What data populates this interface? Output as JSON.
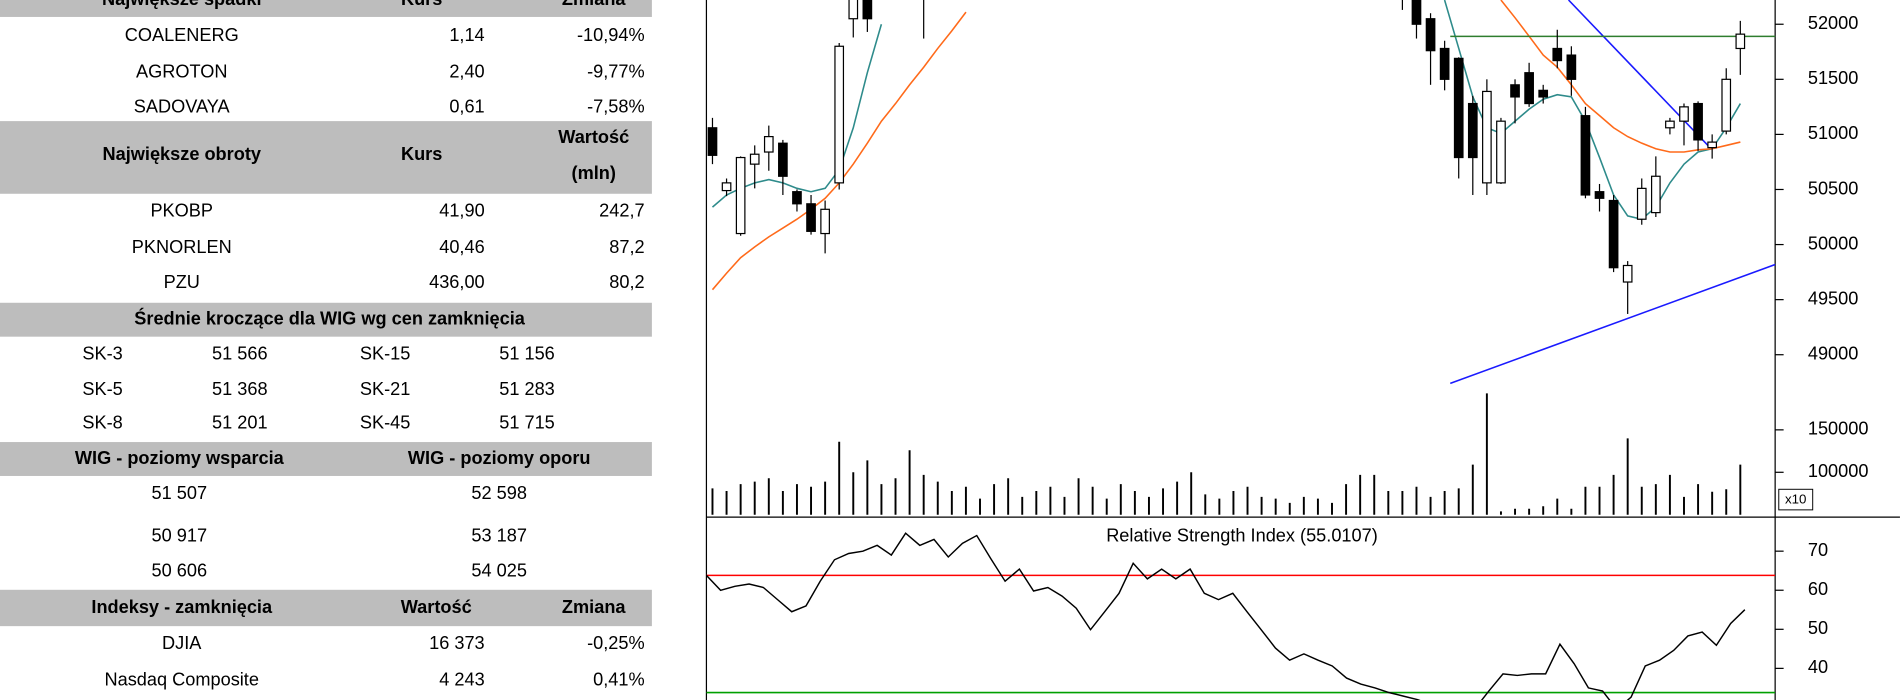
{
  "tables": [
    {
      "header": [
        "Największe spadki",
        "Kurs",
        "Zmiana"
      ],
      "rows": [
        [
          "COALENERG",
          "1,14",
          "-10,94%"
        ],
        [
          "AGROTON",
          "2,40",
          "-9,77%"
        ],
        [
          "SADOVAYA",
          "0,61",
          "-7,58%"
        ]
      ]
    },
    {
      "header": [
        "Największe obroty",
        "Kurs",
        [
          "Wartość",
          "(mln)"
        ]
      ],
      "rows": [
        [
          "PKOBP",
          "41,90",
          "242,7"
        ],
        [
          "PKNORLEN",
          "40,46",
          "87,2"
        ],
        [
          "PZU",
          "436,00",
          "80,2"
        ]
      ]
    },
    {
      "header": [
        "Średnie kroczące dla WIG wg cen zamknięcia"
      ],
      "rows": [
        [
          "SK-3",
          "51 566",
          "SK-15",
          "51 156"
        ],
        [
          "SK-5",
          "51 368",
          "SK-21",
          "51 283"
        ],
        [
          "SK-8",
          "51 201",
          "SK-45",
          "51 715"
        ]
      ]
    },
    {
      "header": [
        "WIG - poziomy wsparcia",
        "WIG - poziomy oporu"
      ],
      "rows": [
        [
          "51 507",
          "52 598"
        ],
        [
          "50 917",
          "53 187"
        ],
        [
          "50 606",
          "54 025"
        ]
      ]
    },
    {
      "header": [
        "Indeksy - zamknięcia",
        "Wartość",
        "Zmiana"
      ],
      "rows": [
        [
          "DJIA",
          "16 373",
          "-0,25%"
        ],
        [
          "Nasdaq Composite",
          "4 243",
          "0,41%"
        ]
      ]
    }
  ],
  "chart_data": [
    {
      "type": "candlestick",
      "open": [
        51060,
        50490,
        50100,
        50730,
        50840,
        50920,
        50480,
        50370,
        50100,
        50560,
        52050,
        52300,
        null,
        null,
        null,
        52400,
        null,
        null,
        null,
        null,
        null,
        null,
        null,
        null,
        null,
        null,
        null,
        null,
        null,
        null,
        null,
        null,
        null,
        null,
        null,
        null,
        null,
        null,
        null,
        null,
        null,
        null,
        null,
        null,
        null,
        null,
        null,
        null,
        null,
        52400,
        52300,
        52050,
        51780,
        51690,
        51280,
        50560,
        50560,
        51450,
        51560,
        51400,
        51780,
        51720,
        51170,
        50480,
        50400,
        49660,
        50230,
        50290,
        51060,
        51120,
        51280,
        50880,
        51030,
        51780
      ],
      "high": [
        51150,
        50600,
        50800,
        50900,
        51080,
        50950,
        50500,
        50450,
        50400,
        51830,
        52300,
        52350,
        null,
        null,
        null,
        52500,
        null,
        null,
        null,
        null,
        null,
        null,
        null,
        null,
        null,
        null,
        null,
        null,
        null,
        null,
        null,
        null,
        null,
        null,
        null,
        null,
        null,
        null,
        null,
        null,
        null,
        null,
        null,
        null,
        null,
        null,
        null,
        null,
        null,
        52500,
        52400,
        52100,
        51850,
        51700,
        51350,
        51500,
        51150,
        51500,
        51650,
        51450,
        51950,
        51800,
        51250,
        50550,
        50450,
        49850,
        50600,
        50800,
        51150,
        51280,
        51300,
        51000,
        51600,
        52030
      ],
      "low": [
        50730,
        50440,
        50080,
        50510,
        50670,
        50450,
        50300,
        50090,
        49920,
        50500,
        51880,
        51930,
        null,
        null,
        null,
        51870,
        null,
        null,
        null,
        null,
        null,
        null,
        null,
        null,
        null,
        null,
        null,
        null,
        null,
        null,
        null,
        null,
        null,
        null,
        null,
        null,
        null,
        null,
        null,
        null,
        null,
        null,
        null,
        null,
        null,
        null,
        null,
        null,
        null,
        52130,
        51870,
        51450,
        51400,
        50600,
        50450,
        50450,
        50550,
        51100,
        51250,
        51280,
        51600,
        51350,
        50420,
        50300,
        49750,
        49370,
        50180,
        50250,
        51000,
        50900,
        50850,
        50780,
        51000,
        51540
      ],
      "close": [
        50810,
        50560,
        50790,
        50820,
        50980,
        50620,
        50370,
        50120,
        50320,
        51800,
        52300,
        52050,
        null,
        null,
        null,
        52250,
        null,
        null,
        null,
        null,
        null,
        null,
        null,
        null,
        null,
        null,
        null,
        null,
        null,
        null,
        null,
        null,
        null,
        null,
        null,
        null,
        null,
        null,
        null,
        null,
        null,
        null,
        null,
        null,
        null,
        null,
        null,
        null,
        null,
        52300,
        52000,
        51760,
        51500,
        50790,
        50790,
        51390,
        51120,
        51340,
        51280,
        51340,
        51670,
        51500,
        50450,
        50420,
        49790,
        49810,
        50510,
        50620,
        51120,
        51250,
        50950,
        50930,
        51500,
        51910
      ],
      "up_color": "#ffffff",
      "down_color": "#000000",
      "lines": [
        {
          "color": "#2e8b8b",
          "values": [
            50340,
            50450,
            50510,
            50560,
            50590,
            50560,
            50510,
            50480,
            50510,
            50680,
            51060,
            51560,
            52000,
            null,
            null,
            null,
            null,
            null,
            null,
            null,
            null,
            null,
            null,
            null,
            null,
            null,
            null,
            null,
            null,
            null,
            null,
            null,
            null,
            null,
            null,
            null,
            null,
            null,
            null,
            null,
            null,
            null,
            null,
            null,
            null,
            null,
            null,
            null,
            null,
            null,
            null,
            null,
            52220,
            51780,
            51340,
            51060,
            51010,
            51120,
            51230,
            51320,
            51360,
            51340,
            51120,
            50790,
            50450,
            50260,
            50230,
            50340,
            50560,
            50730,
            50840,
            50870,
            51060,
            51280
          ]
        },
        {
          "color": "#ff6a1a",
          "values": [
            49590,
            49740,
            49880,
            49980,
            50070,
            50150,
            50230,
            50320,
            50420,
            50560,
            50730,
            50920,
            51120,
            51280,
            51450,
            51610,
            51780,
            51940,
            52110,
            null,
            null,
            null,
            null,
            null,
            null,
            null,
            null,
            null,
            null,
            null,
            null,
            null,
            null,
            null,
            null,
            null,
            null,
            null,
            null,
            null,
            null,
            null,
            null,
            null,
            null,
            null,
            null,
            null,
            null,
            null,
            null,
            null,
            null,
            null,
            null,
            null,
            52220,
            52060,
            51890,
            51720,
            51610,
            51450,
            51280,
            51170,
            51060,
            50980,
            50920,
            50870,
            50840,
            50840,
            50860,
            50870,
            50900,
            50930
          ]
        }
      ],
      "trendlines": [
        {
          "color": "#1a1aff",
          "x": [
            60.8,
            70.7
          ],
          "values": [
            52220,
            50900
          ]
        },
        {
          "color": "#1a1aff",
          "x": [
            52.4,
            75.5
          ],
          "values": [
            48740,
            49820
          ]
        },
        {
          "color": "#2e7d2e",
          "x": [
            52.4,
            75.5
          ],
          "values": [
            51890,
            51890
          ]
        }
      ],
      "ylim": [
        48680,
        52220
      ],
      "yticks": [
        49000,
        49500,
        50000,
        50500,
        51000,
        51500,
        52000
      ]
    },
    {
      "type": "bar",
      "color": "#000000",
      "axis_note": "x10",
      "values": [
        81000,
        78000,
        86000,
        89000,
        93000,
        78000,
        86000,
        83000,
        89000,
        136000,
        100000,
        114000,
        86000,
        93000,
        126000,
        97000,
        89000,
        78000,
        83000,
        69000,
        86000,
        93000,
        71000,
        78000,
        83000,
        71000,
        93000,
        83000,
        69000,
        86000,
        78000,
        71000,
        81000,
        89000,
        100000,
        74000,
        69000,
        78000,
        83000,
        71000,
        69000,
        64000,
        71000,
        69000,
        64000,
        86000,
        97000,
        97000,
        78000,
        78000,
        83000,
        71000,
        78000,
        81000,
        109000,
        193000,
        54000,
        57000,
        57000,
        60000,
        69000,
        57000,
        83000,
        83000,
        97000,
        140000,
        83000,
        86000,
        97000,
        71000,
        86000,
        77000,
        80000,
        109000
      ],
      "ylim": [
        50000,
        197000
      ],
      "yticks": [
        100000,
        150000
      ]
    },
    {
      "type": "line",
      "title": "Relative Strength Index (55.0107)",
      "color": "#000000",
      "values": [
        63.8,
        60,
        61,
        61.6,
        60.7,
        57.6,
        54.5,
        56,
        62.3,
        67.8,
        69.4,
        70,
        71.5,
        69,
        74.6,
        71.5,
        73,
        68.5,
        72,
        74,
        68,
        62.3,
        65.4,
        59.8,
        60.7,
        58.5,
        55.4,
        49.9,
        54.5,
        59.2,
        66.9,
        62.9,
        65.4,
        62.9,
        65.4,
        59.2,
        57.6,
        59.2,
        54.5,
        49.9,
        45.2,
        42.1,
        43.7,
        42.1,
        40.6,
        37.5,
        36,
        35,
        33.8,
        32.9,
        32,
        30.6,
        28,
        28,
        29.5,
        34.2,
        38.6,
        38.2,
        38.6,
        38.6,
        46.2,
        41.2,
        35,
        34.2,
        29.5,
        32.6,
        40.6,
        42.1,
        44.6,
        48.3,
        49.3,
        45.9,
        51.5,
        55.0107
      ],
      "hlines": [
        {
          "value": 63.8,
          "color": "#ff0000"
        },
        {
          "value": 33.8,
          "color": "#00a000"
        }
      ],
      "ylim": [
        31.9,
        78.4
      ],
      "yticks": [
        40,
        50,
        60,
        70
      ]
    }
  ]
}
